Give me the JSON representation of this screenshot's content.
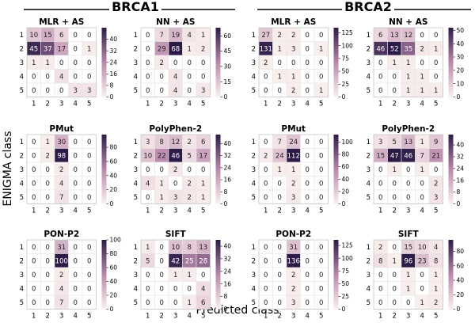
{
  "page": {
    "group_titles": [
      "BRCA1",
      "BRCA2"
    ],
    "ylabel": "ENIGMA class",
    "xlabel": "Predicted class",
    "cmap": {
      "low": "#fbf0ee",
      "mid": "#b988ac",
      "high": "#2c1b46"
    }
  },
  "chart_data": [
    {
      "type": "heatmap",
      "group": "BRCA1",
      "title": "MLR + AS",
      "x": [
        "1",
        "2",
        "3",
        "4",
        "5"
      ],
      "y": [
        "1",
        "2",
        "3",
        "4",
        "5"
      ],
      "values": [
        [
          10,
          15,
          6,
          0,
          0
        ],
        [
          45,
          37,
          17,
          0,
          1
        ],
        [
          1,
          1,
          0,
          0,
          0
        ],
        [
          0,
          0,
          4,
          0,
          0
        ],
        [
          0,
          0,
          0,
          3,
          3
        ]
      ],
      "vmax": 48,
      "colorbar_ticks": [
        0,
        8,
        16,
        24,
        32,
        40
      ]
    },
    {
      "type": "heatmap",
      "group": "BRCA1",
      "title": "NN + AS",
      "x": [
        "1",
        "2",
        "3",
        "4",
        "5"
      ],
      "y": [
        "1",
        "2",
        "3",
        "4",
        "5"
      ],
      "values": [
        [
          0,
          7,
          19,
          4,
          1
        ],
        [
          0,
          29,
          68,
          1,
          2
        ],
        [
          0,
          2,
          0,
          0,
          0
        ],
        [
          0,
          0,
          4,
          0,
          0
        ],
        [
          0,
          0,
          4,
          0,
          3
        ]
      ],
      "vmax": 68,
      "colorbar_ticks": [
        0,
        15,
        30,
        45,
        60
      ]
    },
    {
      "type": "heatmap",
      "group": "BRCA2",
      "title": "MLR + AS",
      "x": [
        "1",
        "2",
        "3",
        "4",
        "5"
      ],
      "y": [
        "1",
        "2",
        "3",
        "4",
        "5"
      ],
      "values": [
        [
          27,
          2,
          2,
          0,
          0
        ],
        [
          131,
          1,
          3,
          0,
          1
        ],
        [
          2,
          0,
          0,
          0,
          0
        ],
        [
          0,
          1,
          1,
          0,
          0
        ],
        [
          0,
          0,
          2,
          0,
          1
        ]
      ],
      "vmax": 135,
      "colorbar_ticks": [
        0,
        25,
        50,
        75,
        100,
        125
      ]
    },
    {
      "type": "heatmap",
      "group": "BRCA2",
      "title": "NN + AS",
      "x": [
        "1",
        "2",
        "3",
        "4",
        "5"
      ],
      "y": [
        "1",
        "2",
        "3",
        "4",
        "5"
      ],
      "values": [
        [
          6,
          13,
          12,
          0,
          0
        ],
        [
          46,
          52,
          35,
          2,
          1
        ],
        [
          0,
          1,
          1,
          0,
          0
        ],
        [
          0,
          0,
          1,
          1,
          0
        ],
        [
          0,
          0,
          1,
          1,
          1
        ]
      ],
      "vmax": 52,
      "colorbar_ticks": [
        0,
        10,
        20,
        30,
        40,
        50
      ]
    },
    {
      "type": "heatmap",
      "group": "BRCA1",
      "title": "PMut",
      "x": [
        "1",
        "2",
        "3",
        "4",
        "5"
      ],
      "y": [
        "1",
        "2",
        "3",
        "4",
        "5"
      ],
      "values": [
        [
          0,
          1,
          30,
          0,
          0
        ],
        [
          0,
          2,
          98,
          0,
          0
        ],
        [
          0,
          0,
          2,
          0,
          0
        ],
        [
          0,
          0,
          4,
          0,
          0
        ],
        [
          0,
          0,
          7,
          0,
          0
        ]
      ],
      "vmax": 98,
      "colorbar_ticks": [
        0,
        20,
        40,
        60,
        80
      ]
    },
    {
      "type": "heatmap",
      "group": "BRCA1",
      "title": "PolyPhen-2",
      "x": [
        "1",
        "2",
        "3",
        "4",
        "5"
      ],
      "y": [
        "1",
        "2",
        "3",
        "4",
        "5"
      ],
      "values": [
        [
          3,
          8,
          12,
          2,
          6
        ],
        [
          10,
          22,
          46,
          5,
          17
        ],
        [
          0,
          0,
          2,
          0,
          0
        ],
        [
          4,
          1,
          0,
          2,
          1
        ],
        [
          0,
          1,
          3,
          2,
          1
        ]
      ],
      "vmax": 46,
      "colorbar_ticks": [
        0,
        8,
        16,
        24,
        32,
        40
      ]
    },
    {
      "type": "heatmap",
      "group": "BRCA2",
      "title": "PMut",
      "x": [
        "1",
        "2",
        "3",
        "4",
        "5"
      ],
      "y": [
        "1",
        "2",
        "3",
        "4",
        "5"
      ],
      "values": [
        [
          0,
          7,
          24,
          0,
          0
        ],
        [
          2,
          24,
          112,
          0,
          0
        ],
        [
          0,
          1,
          1,
          0,
          0
        ],
        [
          0,
          0,
          2,
          0,
          0
        ],
        [
          0,
          0,
          3,
          0,
          0
        ]
      ],
      "vmax": 112,
      "colorbar_ticks": [
        0,
        20,
        40,
        60,
        80,
        100
      ]
    },
    {
      "type": "heatmap",
      "group": "BRCA2",
      "title": "PolyPhen-2",
      "x": [
        "1",
        "2",
        "3",
        "4",
        "5"
      ],
      "y": [
        "1",
        "2",
        "3",
        "4",
        "5"
      ],
      "values": [
        [
          3,
          5,
          13,
          1,
          9
        ],
        [
          15,
          47,
          46,
          7,
          21
        ],
        [
          0,
          1,
          0,
          1,
          0
        ],
        [
          0,
          0,
          0,
          0,
          2
        ],
        [
          0,
          0,
          0,
          0,
          3
        ]
      ],
      "vmax": 47,
      "colorbar_ticks": [
        0,
        8,
        16,
        24,
        32,
        40
      ]
    },
    {
      "type": "heatmap",
      "group": "BRCA1",
      "title": "PON-P2",
      "x": [
        "1",
        "2",
        "3",
        "4",
        "5"
      ],
      "y": [
        "1",
        "2",
        "3",
        "4",
        "5"
      ],
      "values": [
        [
          0,
          0,
          31,
          0,
          0
        ],
        [
          0,
          0,
          100,
          0,
          0
        ],
        [
          0,
          0,
          2,
          0,
          0
        ],
        [
          0,
          0,
          4,
          0,
          0
        ],
        [
          0,
          0,
          7,
          0,
          0
        ]
      ],
      "vmax": 100,
      "colorbar_ticks": [
        0,
        20,
        40,
        60,
        80,
        100
      ]
    },
    {
      "type": "heatmap",
      "group": "BRCA1",
      "title": "SIFT",
      "x": [
        "1",
        "2",
        "3",
        "4",
        "5"
      ],
      "y": [
        "1",
        "2",
        "3",
        "4",
        "5"
      ],
      "values": [
        [
          1,
          0,
          10,
          8,
          13
        ],
        [
          5,
          0,
          42,
          25,
          28
        ],
        [
          0,
          0,
          1,
          1,
          0
        ],
        [
          0,
          0,
          0,
          0,
          4
        ],
        [
          0,
          0,
          0,
          1,
          6
        ]
      ],
      "vmax": 44,
      "colorbar_ticks": [
        0,
        8,
        16,
        24,
        32,
        40
      ]
    },
    {
      "type": "heatmap",
      "group": "BRCA2",
      "title": "PON-P2",
      "x": [
        "1",
        "2",
        "3",
        "4",
        "5"
      ],
      "y": [
        "1",
        "2",
        "3",
        "4",
        "5"
      ],
      "values": [
        [
          0,
          0,
          31,
          0,
          0
        ],
        [
          0,
          0,
          136,
          0,
          0
        ],
        [
          0,
          0,
          2,
          0,
          0
        ],
        [
          0,
          0,
          2,
          0,
          0
        ],
        [
          0,
          0,
          3,
          0,
          0
        ]
      ],
      "vmax": 136,
      "colorbar_ticks": [
        0,
        25,
        50,
        75,
        100,
        125
      ]
    },
    {
      "type": "heatmap",
      "group": "BRCA2",
      "title": "SIFT",
      "x": [
        "1",
        "2",
        "3",
        "4",
        "5"
      ],
      "y": [
        "1",
        "2",
        "3",
        "4",
        "5"
      ],
      "values": [
        [
          2,
          0,
          15,
          10,
          4
        ],
        [
          8,
          1,
          96,
          23,
          8
        ],
        [
          0,
          0,
          1,
          0,
          1
        ],
        [
          0,
          0,
          1,
          0,
          1
        ],
        [
          0,
          0,
          0,
          1,
          2
        ]
      ],
      "vmax": 96,
      "colorbar_ticks": [
        0,
        20,
        40,
        60,
        80
      ]
    }
  ]
}
